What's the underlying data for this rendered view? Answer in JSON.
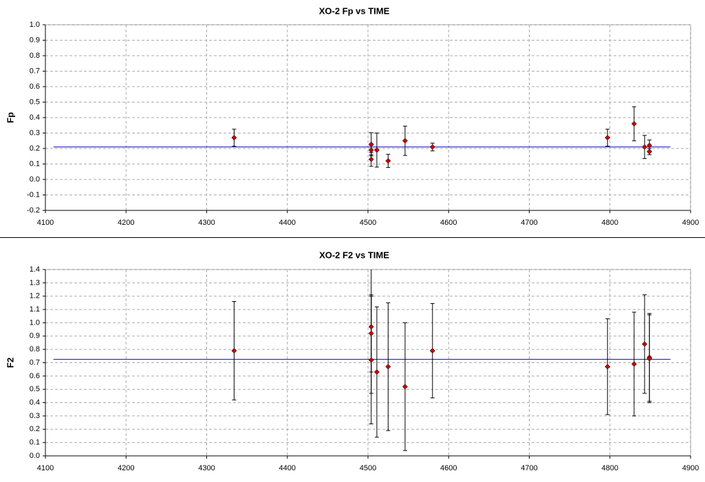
{
  "chart_data": [
    {
      "type": "scatter",
      "title": "XO-2 Fp vs TIME",
      "y_label": "Fp",
      "xlim": [
        4100,
        4900
      ],
      "xticks": [
        4100,
        4200,
        4300,
        4400,
        4500,
        4600,
        4700,
        4800,
        4900
      ],
      "ylim": [
        -0.2,
        1.0
      ],
      "yticks": [
        {
          "value": 1.0,
          "label": "1.0"
        },
        0.9,
        0.8,
        0.7,
        0.6,
        0.5,
        0.4,
        0.3,
        0.2,
        0.1,
        {
          "value": 0,
          "label": "0.0"
        },
        -0.1,
        -0.2
      ],
      "grid": true,
      "series": [
        {
          "color": "#cc0000",
          "x": [
            4334,
            4504,
            4504,
            4504,
            4511,
            4525,
            4546,
            4580,
            4797,
            4830,
            4843,
            4849,
            4849
          ],
          "values": [
            0.27,
            0.227,
            0.19,
            0.13,
            0.19,
            0.12,
            0.25,
            0.21,
            0.27,
            0.36,
            0.21,
            0.22,
            0.18
          ],
          "errors": [
            0.055,
            0.075,
            0.03,
            0.045,
            0.11,
            0.043,
            0.095,
            0.025,
            0.055,
            0.11,
            0.075,
            0.035,
            0.02
          ]
        }
      ],
      "mean_line": {
        "color": "#0000cc",
        "y": 0.21,
        "x": [
          4110,
          4875
        ]
      }
    },
    {
      "type": "scatter",
      "title": "XO-2 F2 vs TIME",
      "y_label": "F2",
      "xlim": [
        4100,
        4900
      ],
      "xticks": [
        4100,
        4200,
        4300,
        4400,
        4500,
        4600,
        4700,
        4800,
        4900
      ],
      "ylim": [
        0,
        1.4
      ],
      "yticks": [
        1.4,
        1.3,
        1.2,
        1.1,
        {
          "value": 1.0,
          "label": "1.0"
        },
        0.9,
        0.8,
        0.7,
        0.6,
        0.5,
        0.4,
        0.3,
        0.2,
        0.1,
        {
          "value": 0,
          "label": "0.0"
        }
      ],
      "grid": true,
      "series": [
        {
          "color": "#cc0000",
          "x": [
            4334,
            4504,
            4504,
            4504,
            4511,
            4525,
            4546,
            4580,
            4797,
            4830,
            4843,
            4849,
            4849
          ],
          "values": [
            0.79,
            0.97,
            0.92,
            0.72,
            0.63,
            0.67,
            0.52,
            0.79,
            0.67,
            0.69,
            0.84,
            0.74,
            0.73
          ],
          "errors": [
            0.37,
            0.5,
            0.29,
            0.48,
            0.49,
            0.48,
            0.48,
            0.355,
            0.36,
            0.39,
            0.37,
            0.33,
            0.33
          ]
        }
      ],
      "mean_line": {
        "color": "#0000cc",
        "y": 0.725,
        "x": [
          4110,
          4875
        ]
      }
    }
  ]
}
